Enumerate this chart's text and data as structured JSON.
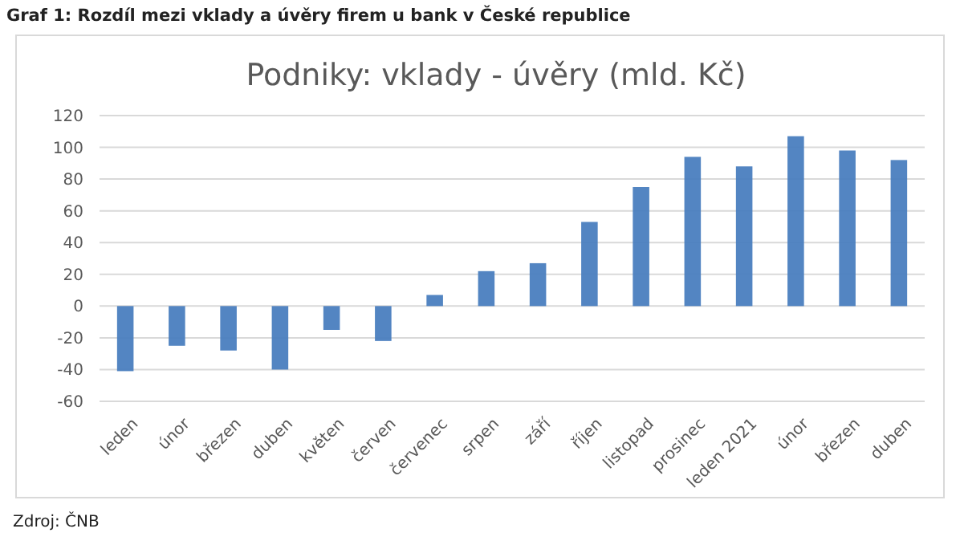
{
  "chart_data": {
    "type": "bar",
    "title": "Graf 1: Rozdíl mezi vklady a úvěry firem u bank v České republice",
    "subtitle": "Podniky: vklady - úvěry (mld. Kč)",
    "annotations": [
      "Zdroj: ČNB"
    ],
    "categories": [
      "leden",
      "únor",
      "březen",
      "duben",
      "květen",
      "červen",
      "červenec",
      "srpen",
      "září",
      "říjen",
      "listopad",
      "prosinec",
      "leden 2021",
      "únor",
      "březen",
      "duben"
    ],
    "values": [
      -41,
      -25,
      -28,
      -40,
      -15,
      -22,
      7,
      22,
      27,
      53,
      75,
      94,
      88,
      107,
      98,
      92
    ],
    "color": "#4a7ebf",
    "ylim": [
      -60,
      120
    ],
    "yticks": [
      -60,
      -40,
      -20,
      0,
      20,
      40,
      60,
      80,
      100,
      120
    ],
    "grid": "y"
  }
}
